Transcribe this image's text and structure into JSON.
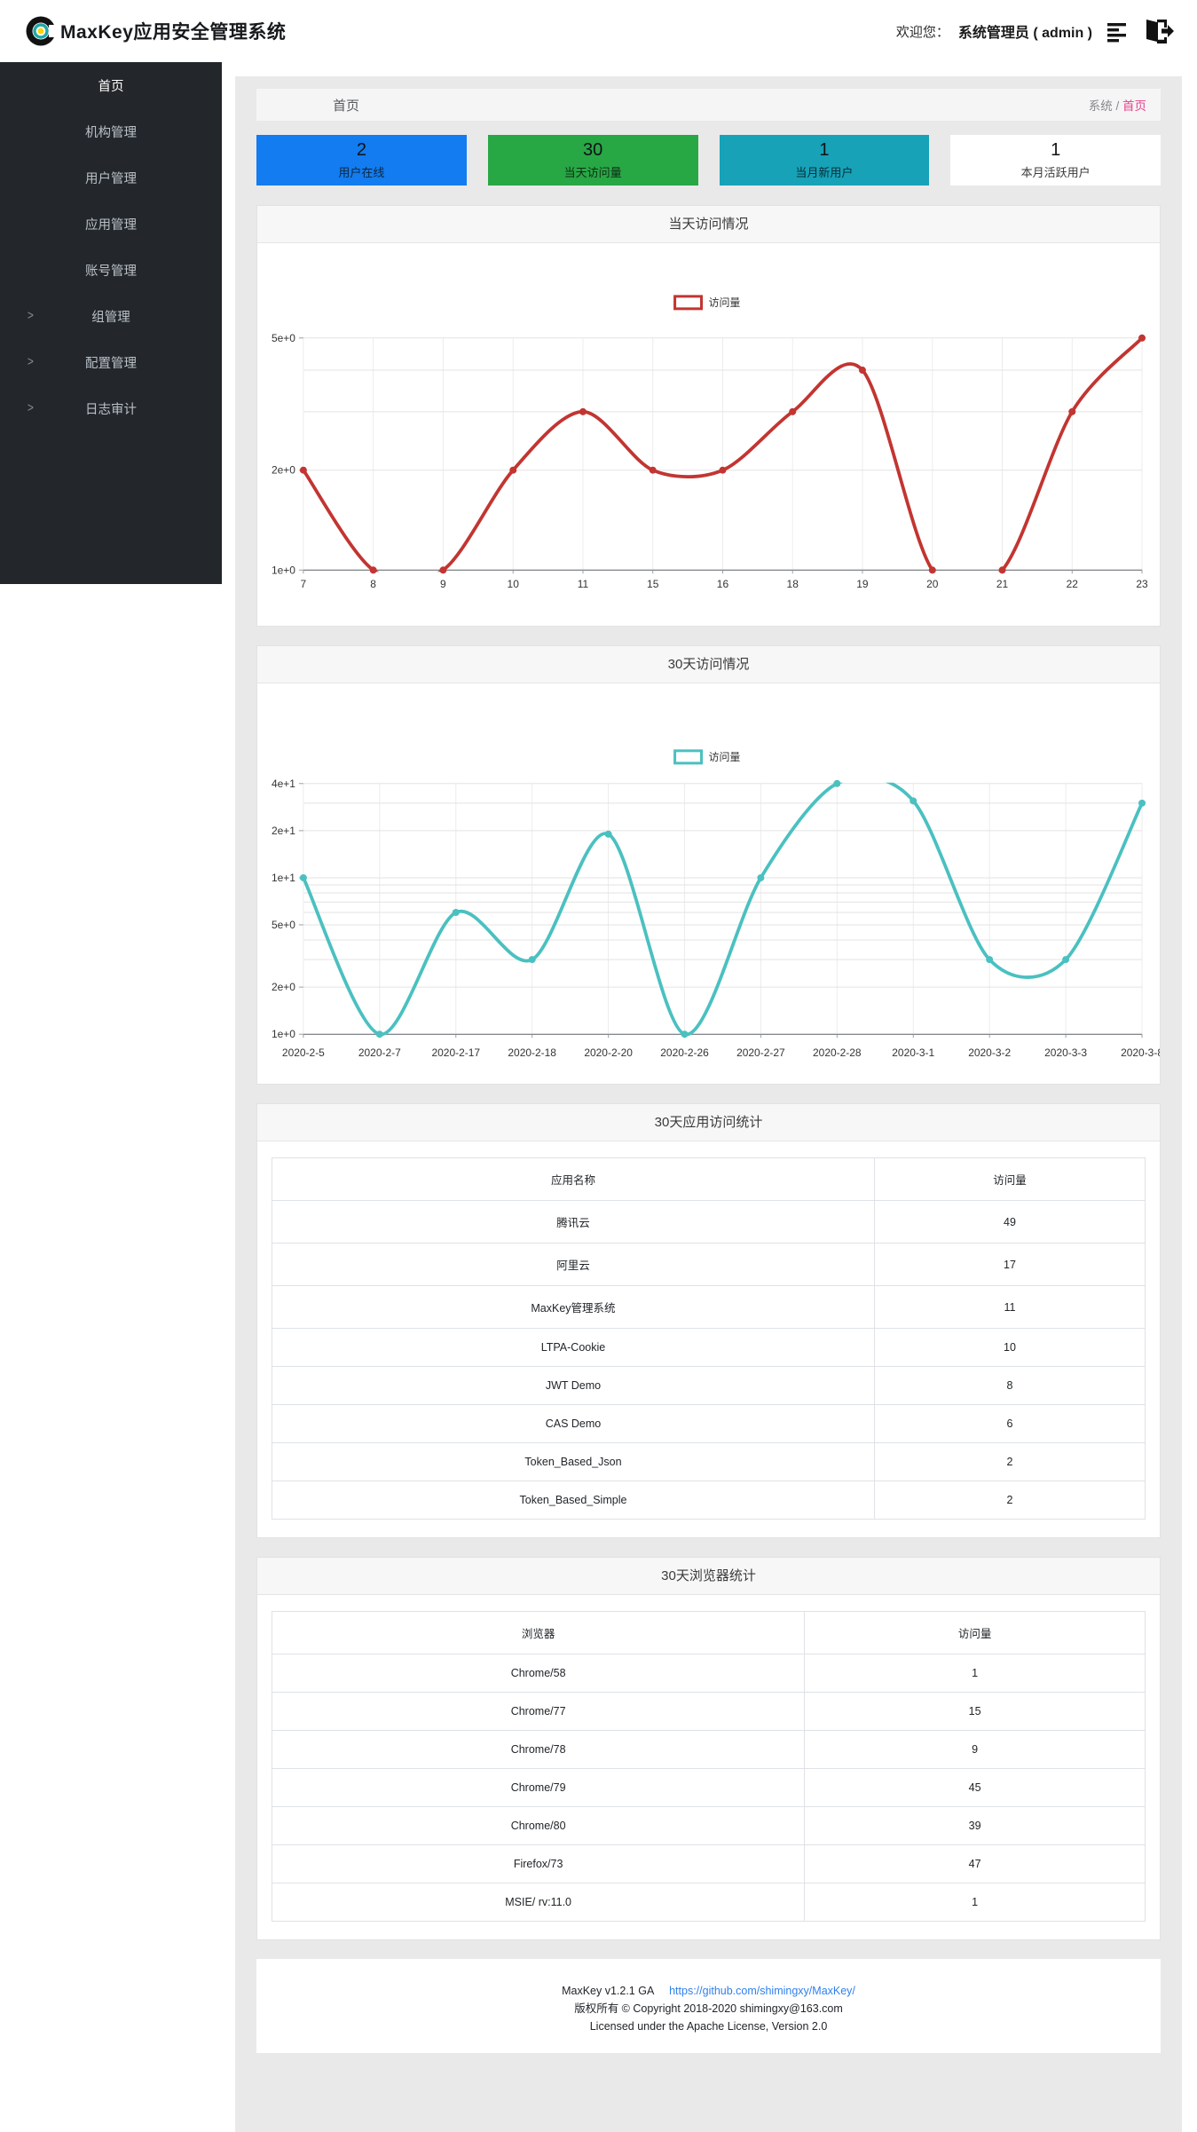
{
  "header": {
    "app_title": "MaxKey应用安全管理系统",
    "welcome_prefix": "欢迎您：",
    "user": "系统管理员 ( admin )"
  },
  "sidebar": {
    "chevron_icon": ">",
    "items": [
      {
        "key": "home",
        "label": "首页",
        "has_children": false,
        "active": true
      },
      {
        "key": "org",
        "label": "机构管理",
        "has_children": false,
        "active": false
      },
      {
        "key": "users",
        "label": "用户管理",
        "has_children": false,
        "active": false
      },
      {
        "key": "apps",
        "label": "应用管理",
        "has_children": false,
        "active": false
      },
      {
        "key": "accounts",
        "label": "账号管理",
        "has_children": false,
        "active": false
      },
      {
        "key": "groups",
        "label": "组管理",
        "has_children": true,
        "active": false
      },
      {
        "key": "config",
        "label": "配置管理",
        "has_children": true,
        "active": false
      },
      {
        "key": "audit",
        "label": "日志审计",
        "has_children": true,
        "active": false
      }
    ]
  },
  "breadcrumb": {
    "page_title": "首页",
    "path_root": "系统",
    "path_sep": "/",
    "path_current": "首页"
  },
  "stats": [
    {
      "key": "users-online",
      "value": "2",
      "label": "用户在线",
      "bg": "#127cf0",
      "text": "#10283d"
    },
    {
      "key": "today-visits",
      "value": "30",
      "label": "当天访问量",
      "bg": "#28a745",
      "text": "#0c2e14"
    },
    {
      "key": "month-new-users",
      "value": "1",
      "label": "当月新用户",
      "bg": "#17a2b8",
      "text": "#072d34"
    },
    {
      "key": "month-active-users",
      "value": "1",
      "label": "本月活跃用户",
      "bg": "#ffffff",
      "text": "#3a3a3a"
    }
  ],
  "chart_data": [
    {
      "type": "line",
      "title": "当天访问情况",
      "legend": "访问量",
      "color": "#c23531",
      "x": [
        "7",
        "8",
        "9",
        "10",
        "11",
        "15",
        "16",
        "18",
        "19",
        "20",
        "21",
        "22",
        "23"
      ],
      "values": [
        2,
        1,
        1,
        2,
        3,
        2,
        2,
        3,
        4,
        1,
        1,
        3,
        5
      ],
      "xlabel": "",
      "ylabel": "",
      "y_scale": "log",
      "ylim": [
        1,
        5
      ],
      "y_ticks": [
        {
          "value": 5,
          "label": "5e+0"
        },
        {
          "value": 2,
          "label": "2e+0"
        },
        {
          "value": 1,
          "label": "1e+0"
        }
      ],
      "grid_values": [
        1,
        2,
        3,
        4,
        5
      ],
      "smooth": true,
      "grid": true,
      "legend_position": "top"
    },
    {
      "type": "line",
      "title": "30天访问情况",
      "legend": "访问量",
      "color": "#4bc0c0",
      "x": [
        "2020-2-5",
        "2020-2-7",
        "2020-2-17",
        "2020-2-18",
        "2020-2-20",
        "2020-2-26",
        "2020-2-27",
        "2020-2-28",
        "2020-3-1",
        "2020-3-2",
        "2020-3-3",
        "2020-3-8"
      ],
      "values": [
        10,
        1,
        6,
        3,
        19,
        1,
        10,
        40,
        31,
        3,
        3,
        30
      ],
      "xlabel": "",
      "ylabel": "",
      "y_scale": "log",
      "ylim": [
        1,
        40
      ],
      "y_ticks": [
        {
          "value": 40,
          "label": "4e+1"
        },
        {
          "value": 20,
          "label": "2e+1"
        },
        {
          "value": 10,
          "label": "1e+1"
        },
        {
          "value": 5,
          "label": "5e+0"
        },
        {
          "value": 2,
          "label": "2e+0"
        },
        {
          "value": 1,
          "label": "1e+0"
        }
      ],
      "grid_values": [
        1,
        2,
        3,
        4,
        5,
        6,
        7,
        8,
        9,
        10,
        20,
        30,
        40
      ],
      "smooth": true,
      "grid": true,
      "legend_position": "top"
    }
  ],
  "tables": [
    {
      "title": "30天应用访问统计",
      "headers": [
        "应用名称",
        "访问量"
      ],
      "rows": [
        [
          "腾讯云",
          "49"
        ],
        [
          "阿里云",
          "17"
        ],
        [
          "MaxKey管理系统",
          "11"
        ],
        [
          "LTPA-Cookie",
          "10"
        ],
        [
          "JWT Demo",
          "8"
        ],
        [
          "CAS Demo",
          "6"
        ],
        [
          "Token_Based_Json",
          "2"
        ],
        [
          "Token_Based_Simple",
          "2"
        ]
      ]
    },
    {
      "title": "30天浏览器统计",
      "headers": [
        "浏览器",
        "访问量"
      ],
      "rows": [
        [
          "Chrome/58",
          "1"
        ],
        [
          "Chrome/77",
          "15"
        ],
        [
          "Chrome/78",
          "9"
        ],
        [
          "Chrome/79",
          "45"
        ],
        [
          "Chrome/80",
          "39"
        ],
        [
          "Firefox/73",
          "47"
        ],
        [
          "MSIE/ rv:11.0",
          "1"
        ]
      ]
    }
  ],
  "footer": {
    "version": "MaxKey  v1.2.1 GA",
    "link": "https://github.com/shimingxy/MaxKey/",
    "copyright": "版权所有 © Copyright 2018-2020 shimingxy@163.com",
    "license": "Licensed under the Apache License, Version 2.0"
  }
}
